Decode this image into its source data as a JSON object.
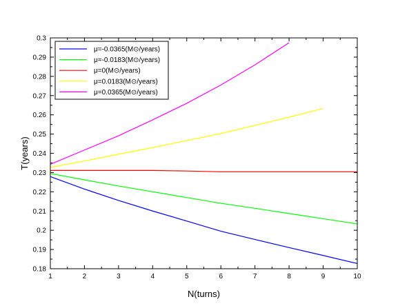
{
  "chart_data": {
    "type": "line",
    "xlabel": "N(turns)",
    "ylabel": "T(years)",
    "xlim": [
      1,
      10
    ],
    "ylim": [
      0.18,
      0.3
    ],
    "xticks": [
      1,
      2,
      3,
      4,
      5,
      6,
      7,
      8,
      9,
      10
    ],
    "xtick_labels": [
      "1",
      "2",
      "3",
      "4",
      "5",
      "6",
      "7",
      "8",
      "9",
      "10"
    ],
    "yticks": [
      0.18,
      0.19,
      0.2,
      0.21,
      0.22,
      0.23,
      0.24,
      0.25,
      0.26,
      0.27,
      0.28,
      0.29,
      0.3
    ],
    "ytick_labels": [
      "0.18",
      "0.19",
      "0.2",
      "0.21",
      "0.22",
      "0.23",
      "0.24",
      "0.25",
      "0.26",
      "0.27",
      "0.28",
      "0.29",
      "0.3"
    ],
    "grid": false,
    "legend_position": "top-left",
    "series": [
      {
        "name": "μ=-0.0365(M⊙/years)",
        "color": "#0000ff",
        "x": [
          1,
          2,
          3,
          4,
          5,
          6,
          7,
          8,
          9,
          10
        ],
        "y": [
          0.2279,
          0.2214,
          0.2155,
          0.21,
          0.2048,
          0.1995,
          0.1952,
          0.191,
          0.1869,
          0.1827
        ]
      },
      {
        "name": "μ=-0.0183(M⊙/years)",
        "color": "#00ff00",
        "x": [
          1,
          2,
          3,
          4,
          5,
          6,
          7,
          8,
          9,
          10
        ],
        "y": [
          0.2295,
          0.2262,
          0.223,
          0.22,
          0.217,
          0.214,
          0.2114,
          0.2087,
          0.206,
          0.2033
        ]
      },
      {
        "name": "μ=0(M⊙/years)",
        "color": "#ff0000",
        "x": [
          1,
          2,
          3,
          4,
          5,
          6,
          7,
          8,
          9,
          10
        ],
        "y": [
          0.2311,
          0.2311,
          0.2311,
          0.2311,
          0.2308,
          0.2304,
          0.2304,
          0.2304,
          0.2304,
          0.2304
        ]
      },
      {
        "name": "μ=0.0183(M⊙/years)",
        "color": "#ffff00",
        "x": [
          1,
          2,
          3,
          4,
          5,
          6,
          7,
          8,
          9
        ],
        "y": [
          0.2327,
          0.236,
          0.2395,
          0.243,
          0.2466,
          0.2503,
          0.2545,
          0.2588,
          0.2633
        ]
      },
      {
        "name": "μ=0.0365(M⊙/years)",
        "color": "#ff00ff",
        "x": [
          1,
          2,
          3,
          4,
          5,
          6,
          7,
          8
        ],
        "y": [
          0.2343,
          0.2417,
          0.2491,
          0.2574,
          0.266,
          0.2755,
          0.286,
          0.2975
        ]
      }
    ]
  }
}
